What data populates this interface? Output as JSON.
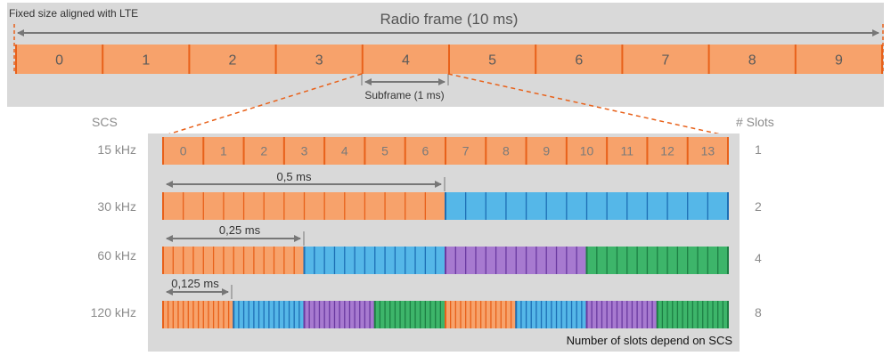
{
  "top_panel": {
    "note": "Fixed size aligned with LTE",
    "radio_frame_label": "Radio frame (10 ms)",
    "subframe_numbers": [
      "0",
      "1",
      "2",
      "3",
      "4",
      "5",
      "6",
      "7",
      "8",
      "9"
    ],
    "subframe_label": "Subframe (1 ms)"
  },
  "bottom_panel": {
    "scs_header": "SCS",
    "slots_header": "# Slots",
    "symbol_numbers": [
      "0",
      "1",
      "2",
      "3",
      "4",
      "5",
      "6",
      "7",
      "8",
      "9",
      "10",
      "11",
      "12",
      "13"
    ],
    "rows": [
      {
        "scs": "15 kHz",
        "slots": "1"
      },
      {
        "scs": "30 kHz",
        "slots": "2"
      },
      {
        "scs": "60 kHz",
        "slots": "4"
      },
      {
        "scs": "120 kHz",
        "slots": "8"
      }
    ],
    "durations": [
      "0,5 ms",
      "0,25 ms",
      "0,125 ms"
    ],
    "footer": "Number of slots depend on SCS"
  },
  "colors": {
    "panel_bg": "#d9d9d9",
    "orange": "#f7a26b",
    "orange_dark": "#e8611a",
    "blue": "#55b7e8",
    "blue_dark": "#1e6fb5",
    "purple": "#a77ad0",
    "purple_dark": "#6a3aa0",
    "green": "#3db56a",
    "green_dark": "#1d7f44",
    "arrow": "#777777",
    "label_gray": "#8c8c8c"
  }
}
